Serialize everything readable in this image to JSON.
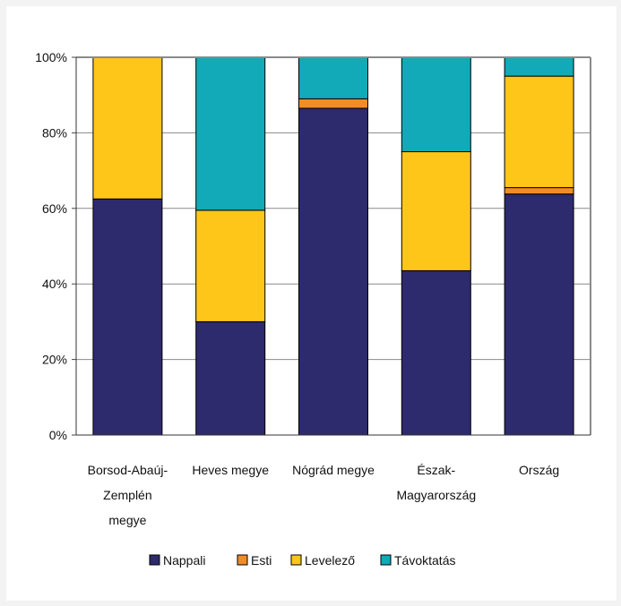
{
  "chart_data": {
    "type": "bar",
    "stacked": "percent",
    "categories": [
      [
        "Borsod-Abaúj-",
        "Zemplén",
        "megye"
      ],
      [
        "Heves megye"
      ],
      [
        "Nógrád megye"
      ],
      [
        "Észak-",
        "Magyarország"
      ],
      [
        "Ország"
      ]
    ],
    "series": [
      {
        "name": "Nappali",
        "color": "#2e2a6e",
        "values": [
          62.5,
          30.0,
          86.5,
          43.5,
          63.8
        ]
      },
      {
        "name": "Esti",
        "color": "#f28c28",
        "values": [
          0.0,
          0.0,
          2.5,
          0.0,
          1.7
        ]
      },
      {
        "name": "Levelező",
        "color": "#ffc61a",
        "values": [
          37.5,
          29.5,
          0.0,
          31.5,
          29.5
        ]
      },
      {
        "name": "Távoktatás",
        "color": "#12a9b8",
        "values": [
          0.0,
          40.5,
          11.0,
          25.0,
          5.0
        ]
      }
    ],
    "ylim": [
      0,
      100
    ],
    "yticks": [
      "0%",
      "20%",
      "40%",
      "60%",
      "80%",
      "100%"
    ],
    "grid": true,
    "legend_position": "bottom"
  }
}
